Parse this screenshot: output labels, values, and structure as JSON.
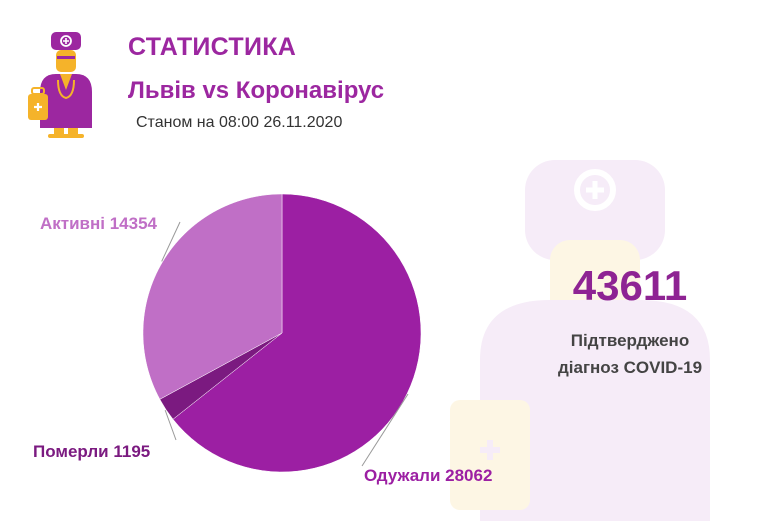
{
  "header": {
    "title": "СТАТИСТИКА",
    "subtitle": "Львів vs Коронавірус",
    "date": "Станом на 08:00 26.11.2020"
  },
  "logo": {
    "icon": "doctor-icon"
  },
  "summary": {
    "total": "43611",
    "label_line1": "Підтверджено",
    "label_line2": "діагноз COVID-19"
  },
  "colors": {
    "accent": "#9c27a0",
    "recovered": "#9c1fa3",
    "deaths": "#7b1a80",
    "active": "#c06fc6",
    "total_text": "#8e2393",
    "logo_yellow": "#f5b32a",
    "watermark_purple": "#f6ecf8",
    "watermark_yellow": "#fdf6e4"
  },
  "chart_data": {
    "type": "pie",
    "title": "",
    "categories": [
      "Одужали",
      "Померли",
      "Активні"
    ],
    "values": [
      28062,
      1195,
      14354
    ],
    "labels": [
      "Одужали 28062",
      "Померли 1195",
      "Активні 14354"
    ],
    "colors": [
      "#9c1fa3",
      "#7b1a80",
      "#c06fc6"
    ],
    "start": "12 o'clock",
    "direction": "clockwise"
  }
}
